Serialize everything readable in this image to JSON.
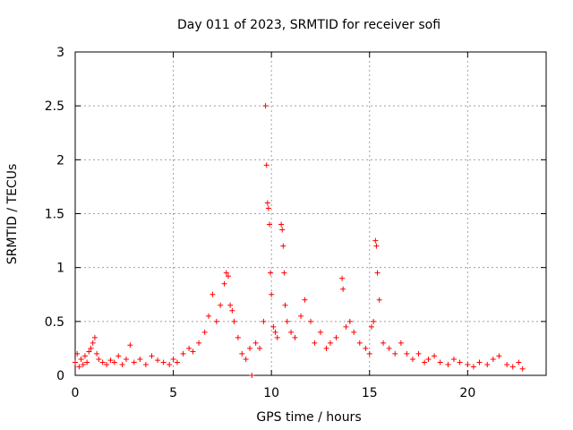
{
  "chart_data": {
    "type": "scatter",
    "title": "Day 011 of 2023, SRMTID for receiver sofi",
    "xlabel": "GPS time / hours",
    "ylabel": "SRMTID / TECUs",
    "xlim": [
      0,
      24
    ],
    "ylim": [
      0,
      3
    ],
    "xticks": [
      0,
      5,
      10,
      15,
      20
    ],
    "xtick_labels": [
      "0",
      "5",
      "10",
      "15",
      "20"
    ],
    "yticks": [
      0,
      0.5,
      1,
      1.5,
      2,
      2.5,
      3
    ],
    "ytick_labels": [
      "0",
      "0.5",
      "1",
      "1.5",
      "2",
      "2.5",
      "3"
    ],
    "grid": true,
    "marker": "+",
    "color": "#ff0000",
    "series": [
      {
        "name": "SRMTID",
        "points": [
          [
            0.0,
            0.12
          ],
          [
            0.1,
            0.2
          ],
          [
            0.2,
            0.08
          ],
          [
            0.3,
            0.15
          ],
          [
            0.4,
            0.1
          ],
          [
            0.5,
            0.18
          ],
          [
            0.6,
            0.12
          ],
          [
            0.7,
            0.22
          ],
          [
            0.8,
            0.25
          ],
          [
            0.9,
            0.3
          ],
          [
            1.0,
            0.35
          ],
          [
            1.1,
            0.2
          ],
          [
            1.2,
            0.15
          ],
          [
            1.4,
            0.12
          ],
          [
            1.6,
            0.1
          ],
          [
            1.8,
            0.14
          ],
          [
            2.0,
            0.12
          ],
          [
            2.2,
            0.18
          ],
          [
            2.4,
            0.1
          ],
          [
            2.6,
            0.15
          ],
          [
            2.8,
            0.28
          ],
          [
            3.0,
            0.12
          ],
          [
            3.3,
            0.15
          ],
          [
            3.6,
            0.1
          ],
          [
            3.9,
            0.18
          ],
          [
            4.2,
            0.14
          ],
          [
            4.5,
            0.12
          ],
          [
            4.8,
            0.1
          ],
          [
            5.0,
            0.15
          ],
          [
            5.2,
            0.12
          ],
          [
            5.5,
            0.2
          ],
          [
            5.8,
            0.25
          ],
          [
            6.0,
            0.22
          ],
          [
            6.3,
            0.3
          ],
          [
            6.6,
            0.4
          ],
          [
            6.8,
            0.55
          ],
          [
            7.0,
            0.75
          ],
          [
            7.2,
            0.5
          ],
          [
            7.4,
            0.65
          ],
          [
            7.6,
            0.85
          ],
          [
            7.7,
            0.95
          ],
          [
            7.8,
            0.92
          ],
          [
            7.9,
            0.65
          ],
          [
            8.0,
            0.6
          ],
          [
            8.1,
            0.5
          ],
          [
            8.3,
            0.35
          ],
          [
            8.5,
            0.2
          ],
          [
            8.7,
            0.15
          ],
          [
            8.9,
            0.25
          ],
          [
            9.0,
            0.0
          ],
          [
            9.2,
            0.3
          ],
          [
            9.4,
            0.25
          ],
          [
            9.6,
            0.5
          ],
          [
            9.7,
            2.5
          ],
          [
            9.75,
            1.95
          ],
          [
            9.8,
            1.6
          ],
          [
            9.85,
            1.55
          ],
          [
            9.9,
            1.4
          ],
          [
            9.95,
            0.95
          ],
          [
            10.0,
            0.75
          ],
          [
            10.1,
            0.45
          ],
          [
            10.2,
            0.4
          ],
          [
            10.3,
            0.35
          ],
          [
            10.5,
            1.4
          ],
          [
            10.55,
            1.35
          ],
          [
            10.6,
            1.2
          ],
          [
            10.65,
            0.95
          ],
          [
            10.7,
            0.65
          ],
          [
            10.8,
            0.5
          ],
          [
            11.0,
            0.4
          ],
          [
            11.2,
            0.35
          ],
          [
            11.5,
            0.55
          ],
          [
            11.7,
            0.7
          ],
          [
            12.0,
            0.5
          ],
          [
            12.2,
            0.3
          ],
          [
            12.5,
            0.4
          ],
          [
            12.8,
            0.25
          ],
          [
            13.0,
            0.3
          ],
          [
            13.3,
            0.35
          ],
          [
            13.6,
            0.9
          ],
          [
            13.65,
            0.8
          ],
          [
            13.8,
            0.45
          ],
          [
            14.0,
            0.5
          ],
          [
            14.2,
            0.4
          ],
          [
            14.5,
            0.3
          ],
          [
            14.8,
            0.25
          ],
          [
            15.0,
            0.2
          ],
          [
            15.1,
            0.45
          ],
          [
            15.2,
            0.5
          ],
          [
            15.3,
            1.25
          ],
          [
            15.35,
            1.2
          ],
          [
            15.4,
            0.95
          ],
          [
            15.5,
            0.7
          ],
          [
            15.7,
            0.3
          ],
          [
            16.0,
            0.25
          ],
          [
            16.3,
            0.2
          ],
          [
            16.6,
            0.3
          ],
          [
            16.9,
            0.2
          ],
          [
            17.2,
            0.15
          ],
          [
            17.5,
            0.2
          ],
          [
            17.8,
            0.12
          ],
          [
            18.0,
            0.15
          ],
          [
            18.3,
            0.18
          ],
          [
            18.6,
            0.12
          ],
          [
            19.0,
            0.1
          ],
          [
            19.3,
            0.15
          ],
          [
            19.6,
            0.12
          ],
          [
            20.0,
            0.1
          ],
          [
            20.3,
            0.08
          ],
          [
            20.6,
            0.12
          ],
          [
            21.0,
            0.1
          ],
          [
            21.3,
            0.15
          ],
          [
            21.6,
            0.18
          ],
          [
            22.0,
            0.1
          ],
          [
            22.3,
            0.08
          ],
          [
            22.6,
            0.12
          ],
          [
            22.8,
            0.06
          ]
        ]
      }
    ]
  }
}
